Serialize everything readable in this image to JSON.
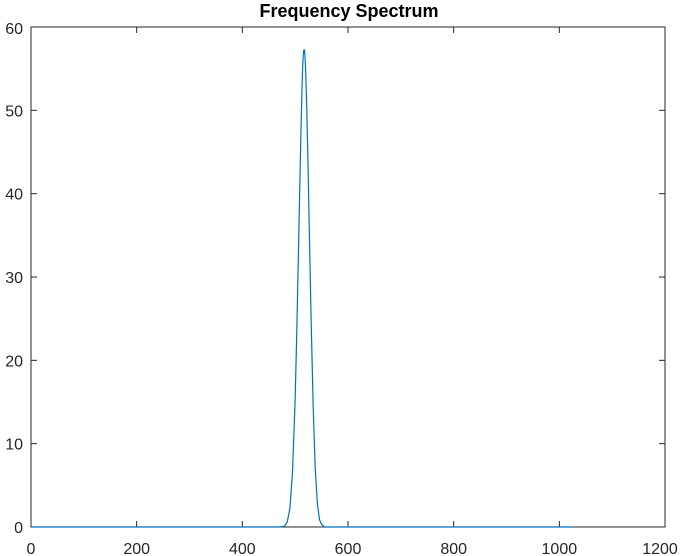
{
  "chart_data": {
    "type": "line",
    "title": "Frequency Spectrum",
    "xlabel": "",
    "ylabel": "",
    "xlim": [
      0,
      1200
    ],
    "ylim": [
      0,
      60
    ],
    "x_ticks": [
      0,
      200,
      400,
      600,
      800,
      1000,
      1200
    ],
    "y_ticks": [
      0,
      10,
      20,
      30,
      40,
      50,
      60
    ],
    "grid": false,
    "box": true,
    "colors": {
      "series": "#0072BD",
      "axes": "#262626"
    },
    "series": [
      {
        "x_range": [
          1,
          1024
        ],
        "values": [
          [
            1,
            0
          ],
          [
            470,
            0
          ],
          [
            480,
            0.1
          ],
          [
            485,
            0.6
          ],
          [
            490,
            2.2
          ],
          [
            495,
            6.6
          ],
          [
            500,
            15.4
          ],
          [
            503,
            23.3
          ],
          [
            506,
            32.3
          ],
          [
            509,
            41.6
          ],
          [
            511,
            47.6
          ],
          [
            513,
            52.7
          ],
          [
            514,
            54.8
          ],
          [
            515,
            56.3
          ],
          [
            516,
            57.1
          ],
          [
            517,
            57.3
          ],
          [
            518,
            57.0
          ],
          [
            519,
            56.0
          ],
          [
            520,
            54.5
          ],
          [
            522,
            50.2
          ],
          [
            524,
            44.5
          ],
          [
            527,
            34.9
          ],
          [
            530,
            25.5
          ],
          [
            534,
            14.6
          ],
          [
            538,
            7.0
          ],
          [
            542,
            2.8
          ],
          [
            546,
            0.9
          ],
          [
            550,
            0.3
          ],
          [
            556,
            0
          ],
          [
            1024,
            0
          ]
        ]
      }
    ]
  }
}
